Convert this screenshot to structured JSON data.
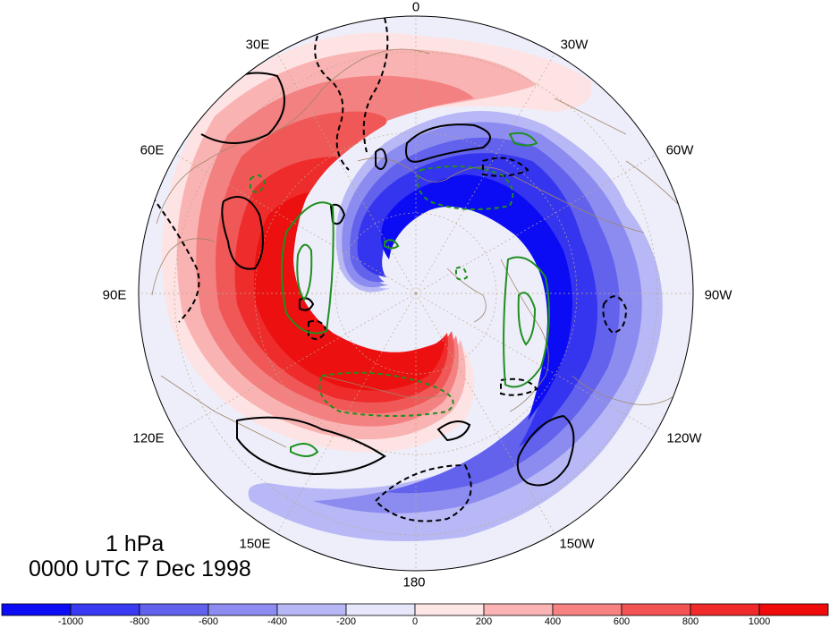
{
  "title": {
    "level": "1 hPa",
    "time": "0000 UTC 7 Dec 1998"
  },
  "longitude_labels": [
    "0",
    "30W",
    "60W",
    "90W",
    "120W",
    "150W",
    "180",
    "150E",
    "120E",
    "90E",
    "60E",
    "30E"
  ],
  "colorbar": {
    "tick_labels": [
      "-1000",
      "-800",
      "-600",
      "-400",
      "-200",
      "0",
      "200",
      "400",
      "600",
      "800",
      "1000"
    ],
    "colors": [
      "#0d0df5",
      "#3a3af2",
      "#6262ee",
      "#8c8cf1",
      "#b7b7f6",
      "#e7e7fb",
      "#fde6e6",
      "#fab4b4",
      "#f68282",
      "#f25454",
      "#f02a2a",
      "#f00b0b"
    ]
  },
  "map": {
    "projection": "north polar stereographic",
    "contour_colors": {
      "positive": "#000000",
      "negative": "#000000",
      "second_field": "#1f8f1f"
    },
    "coastline_color": "#a0866a"
  }
}
